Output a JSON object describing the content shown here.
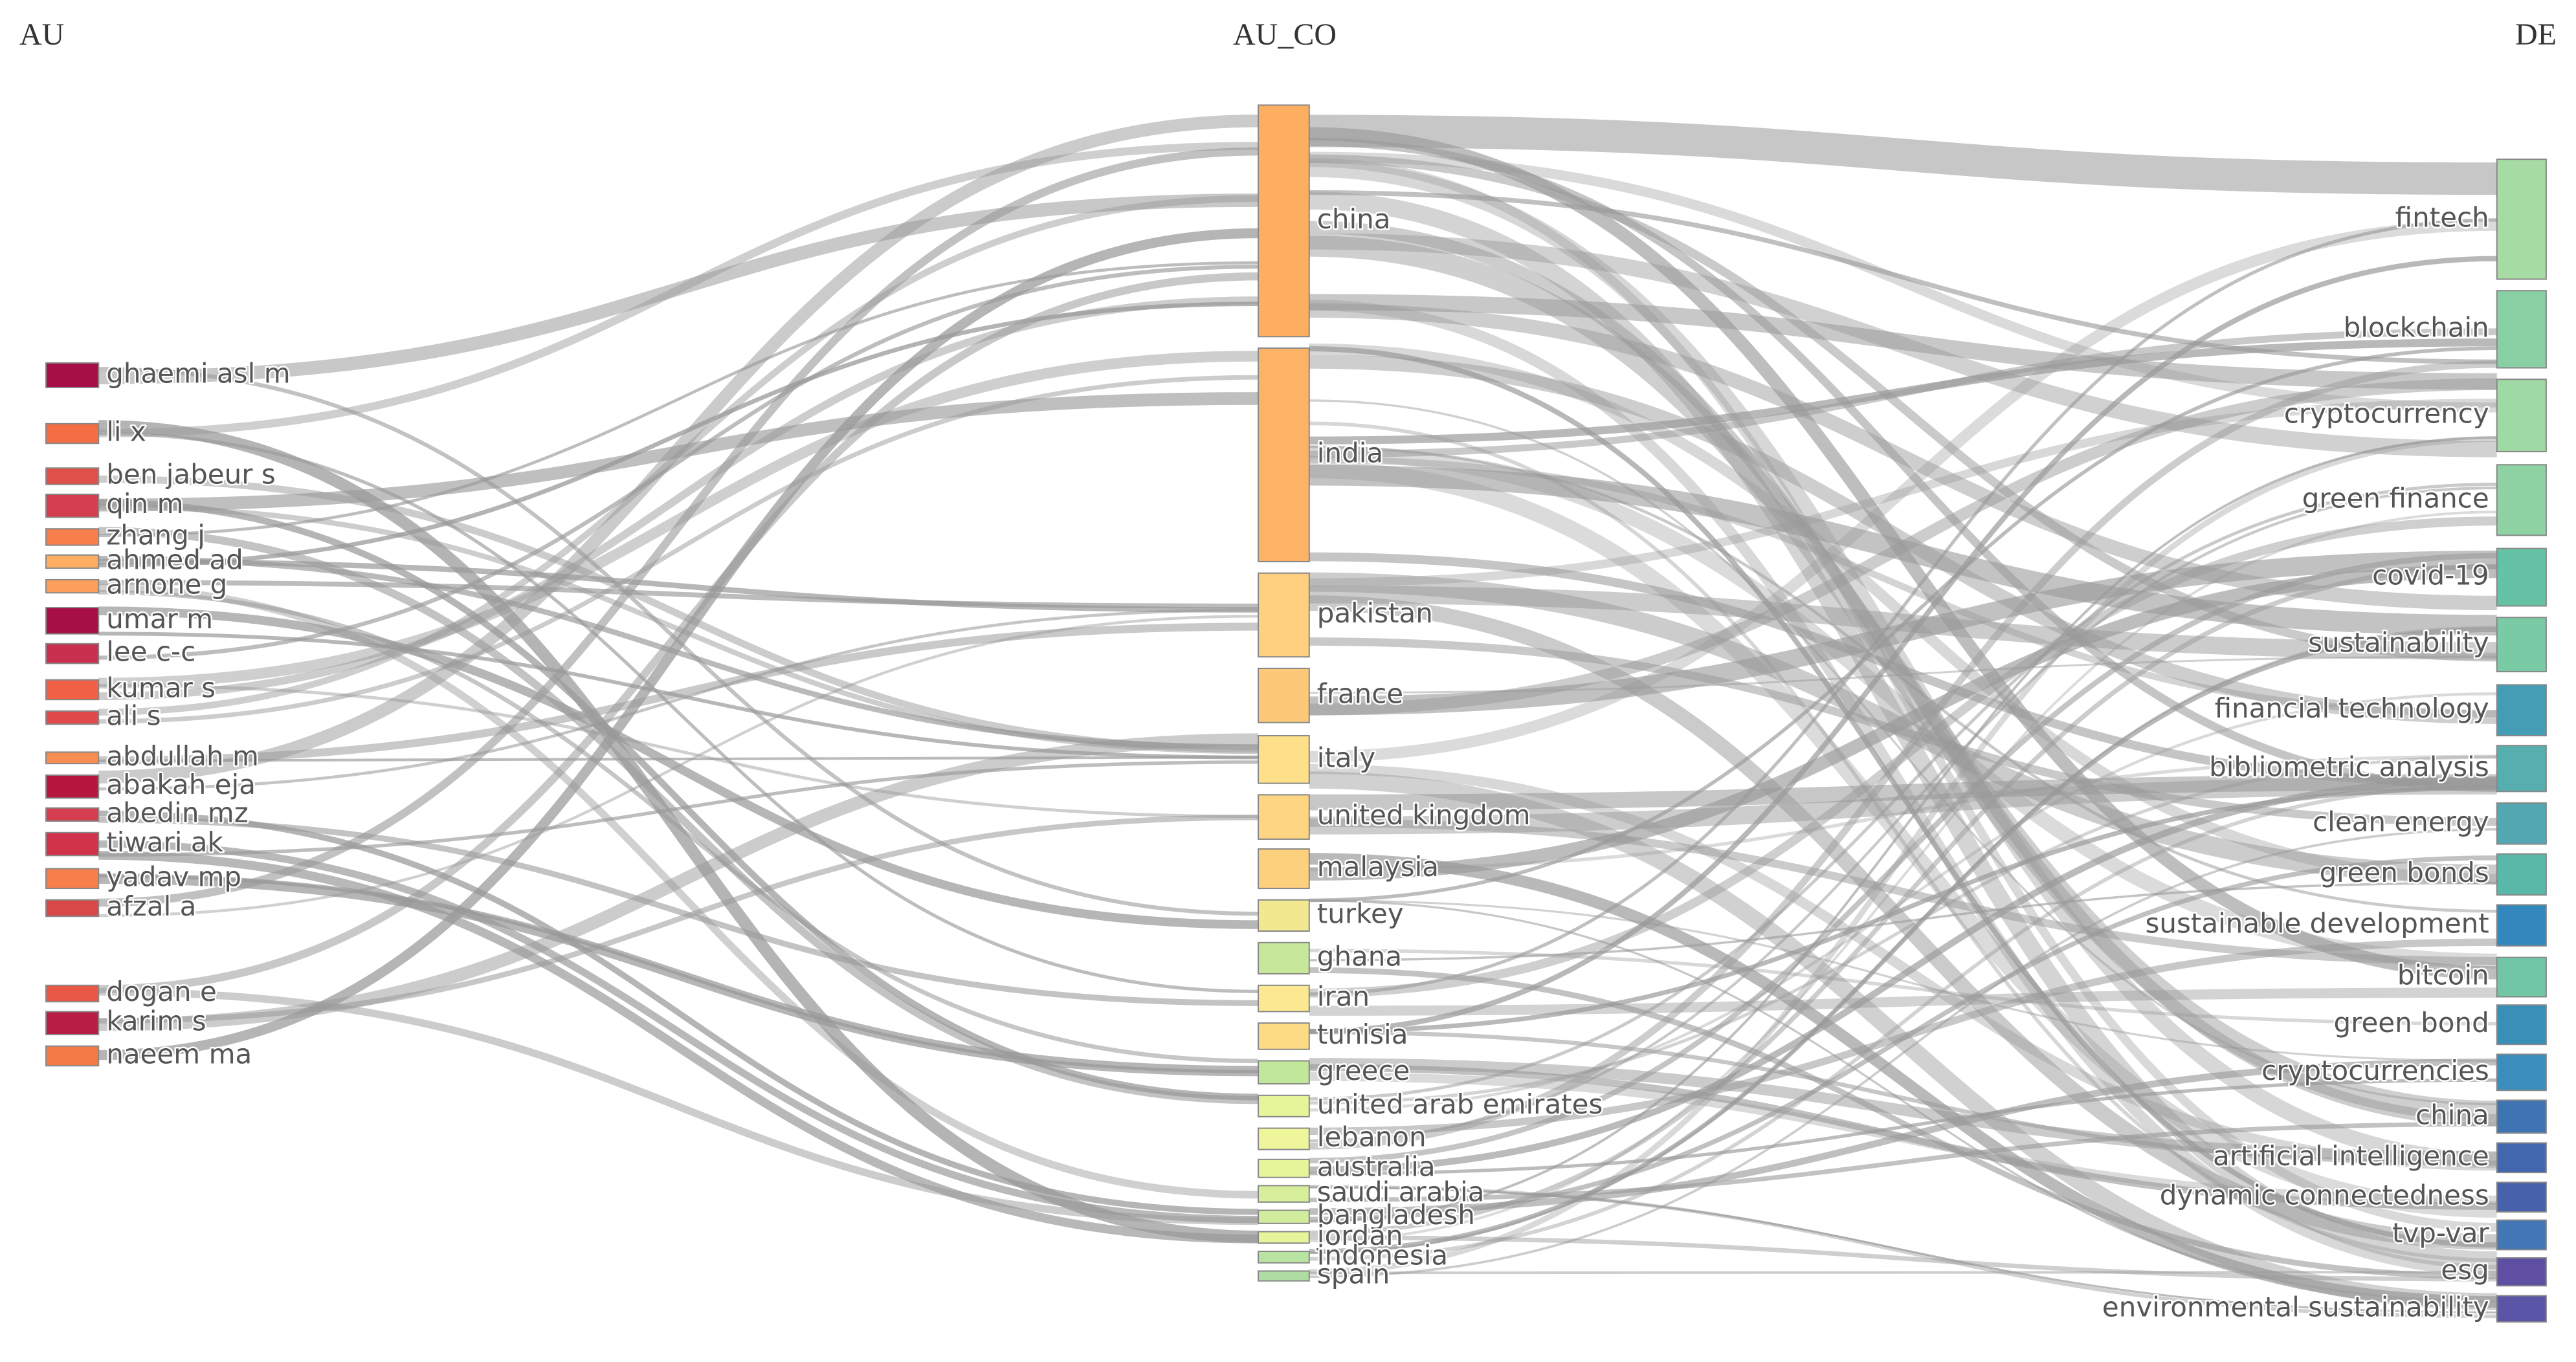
{
  "headers": {
    "left": "AU",
    "middle": "AU_CO",
    "right": "DE"
  },
  "columns": [
    {
      "nodes": [
        {
          "label": "ghaemi asl m",
          "value": 15,
          "color": "#a50f45"
        },
        {
          "label": "li x",
          "value": 12,
          "color": "#f46d43"
        },
        {
          "label": "ben jabeur s",
          "value": 10,
          "color": "#e0504a"
        },
        {
          "label": "qin m",
          "value": 14,
          "color": "#d53e4f"
        },
        {
          "label": "zhang j",
          "value": 10,
          "color": "#f67f4b"
        },
        {
          "label": "ahmed ad",
          "value": 8,
          "color": "#fdae61"
        },
        {
          "label": "arnone g",
          "value": 8,
          "color": "#fb9f5a"
        },
        {
          "label": "umar m",
          "value": 16,
          "color": "#a50f45"
        },
        {
          "label": "lee c-c",
          "value": 12,
          "color": "#c9304f"
        },
        {
          "label": "kumar s",
          "value": 12,
          "color": "#f06045"
        },
        {
          "label": "ali s",
          "value": 8,
          "color": "#e04a4a"
        },
        {
          "label": "abdullah m",
          "value": 7,
          "color": "#f88d52"
        },
        {
          "label": "abakah eja",
          "value": 14,
          "color": "#b5173f"
        },
        {
          "label": "abedin mz",
          "value": 8,
          "color": "#d53e4f"
        },
        {
          "label": "tiwari ak",
          "value": 14,
          "color": "#d0324a"
        },
        {
          "label": "yadav mp",
          "value": 12,
          "color": "#f67f4b"
        },
        {
          "label": "afzal a",
          "value": 10,
          "color": "#d94848"
        },
        {
          "label": "dogan e",
          "value": 10,
          "color": "#e85846"
        },
        {
          "label": "karim s",
          "value": 14,
          "color": "#b81d46"
        },
        {
          "label": "naeem ma",
          "value": 12,
          "color": "#f47b48"
        }
      ]
    },
    {
      "nodes": [
        {
          "label": "china",
          "value": 141,
          "color": "#fdae61"
        },
        {
          "label": "india",
          "value": 130,
          "color": "#fdb366"
        },
        {
          "label": "pakistan",
          "value": 51,
          "color": "#fed07f"
        },
        {
          "label": "france",
          "value": 33,
          "color": "#fdc877"
        },
        {
          "label": "italy",
          "value": 29,
          "color": "#fee08b"
        },
        {
          "label": "united kingdom",
          "value": 27,
          "color": "#fed582"
        },
        {
          "label": "malaysia",
          "value": 24,
          "color": "#fdd07d"
        },
        {
          "label": "turkey",
          "value": 19,
          "color": "#f1e88f"
        },
        {
          "label": "ghana",
          "value": 19,
          "color": "#c7e89a"
        },
        {
          "label": "iran",
          "value": 16,
          "color": "#fbe891"
        },
        {
          "label": "tunisia",
          "value": 16,
          "color": "#fddb85"
        },
        {
          "label": "greece",
          "value": 14,
          "color": "#c0e79a"
        },
        {
          "label": "united arab emirates",
          "value": 13,
          "color": "#e6f59a"
        },
        {
          "label": "lebanon",
          "value": 13,
          "color": "#eef59b"
        },
        {
          "label": "australia",
          "value": 11,
          "color": "#e6f59a"
        },
        {
          "label": "saudi arabia",
          "value": 10,
          "color": "#d7ef9b"
        },
        {
          "label": "bangladesh",
          "value": 8,
          "color": "#d0ec9c"
        },
        {
          "label": "jordan",
          "value": 7,
          "color": "#e6f59a"
        },
        {
          "label": "indonesia",
          "value": 7,
          "color": "#b9e3a0"
        },
        {
          "label": "spain",
          "value": 6,
          "color": "#aedca3"
        }
      ]
    },
    {
      "nodes": [
        {
          "label": "fintech",
          "value": 73,
          "color": "#a6dba4"
        },
        {
          "label": "blockchain",
          "value": 47,
          "color": "#88cfa4"
        },
        {
          "label": "cryptocurrency",
          "value": 44,
          "color": "#9fd9a4"
        },
        {
          "label": "green finance",
          "value": 43,
          "color": "#8fd3a4"
        },
        {
          "label": "covid-19",
          "value": 35,
          "color": "#66c2a5"
        },
        {
          "label": "sustainability",
          "value": 33,
          "color": "#7acba5"
        },
        {
          "label": "financial technology",
          "value": 31,
          "color": "#449db5"
        },
        {
          "label": "bibliometric analysis",
          "value": 28,
          "color": "#56aeae"
        },
        {
          "label": "clean energy",
          "value": 25,
          "color": "#52a7b1"
        },
        {
          "label": "green bonds",
          "value": 25,
          "color": "#5ab8a8"
        },
        {
          "label": "sustainable development",
          "value": 25,
          "color": "#3288bd"
        },
        {
          "label": "bitcoin",
          "value": 24,
          "color": "#70c6a5"
        },
        {
          "label": "green bond",
          "value": 24,
          "color": "#3a8fb9"
        },
        {
          "label": "cryptocurrencies",
          "value": 22,
          "color": "#3b8dbc"
        },
        {
          "label": "china",
          "value": 20,
          "color": "#3f74b2"
        },
        {
          "label": "artificial intelligence",
          "value": 18,
          "color": "#4367ae"
        },
        {
          "label": "dynamic connectedness",
          "value": 18,
          "color": "#4761aa"
        },
        {
          "label": "tvp-var",
          "value": 18,
          "color": "#4376b4"
        },
        {
          "label": "esg",
          "value": 17,
          "color": "#5e4fa2"
        },
        {
          "label": "environmental sustainability",
          "value": 16,
          "color": "#5a55a6"
        }
      ]
    }
  ]
}
